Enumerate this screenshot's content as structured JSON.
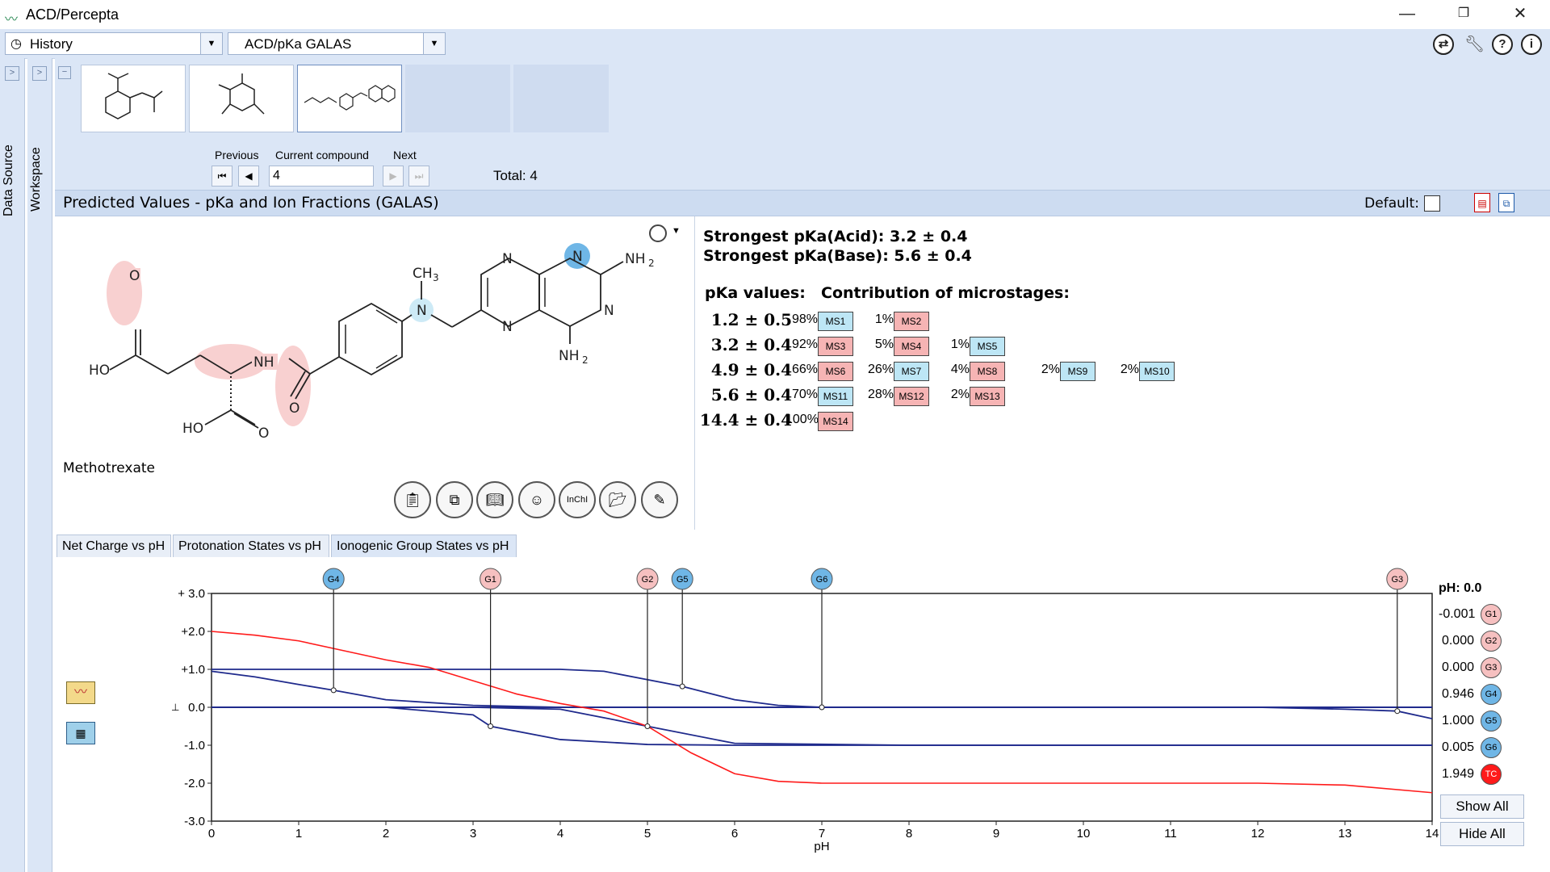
{
  "window": {
    "title": "ACD/Percepta"
  },
  "toolbar": {
    "history_label": "History",
    "module_label": "ACD/pKa GALAS"
  },
  "sidebar": {
    "data_source": "Data Source",
    "workspace": "Workspace"
  },
  "navigation": {
    "previous_label": "Previous",
    "current_label": "Current compound",
    "next_label": "Next",
    "current_value": "4",
    "total": "Total: 4"
  },
  "header": {
    "title": "Predicted Values - pKa and Ion Fractions (GALAS)",
    "default_label": "Default:"
  },
  "compound": {
    "name": "Methotrexate"
  },
  "pka": {
    "strongest_acid": "Strongest pKa(Acid): 3.2 ± 0.4",
    "strongest_base": "Strongest pKa(Base): 5.6 ± 0.4",
    "values_label": "pKa values:",
    "contrib_label": "Contribution of microstages:",
    "rows": [
      {
        "value": "1.2 ± 0.5",
        "items": [
          {
            "pct": "98%",
            "ms": "MS1",
            "color": "blue"
          },
          {
            "pct": "1%",
            "ms": "MS2",
            "color": "pink"
          }
        ]
      },
      {
        "value": "3.2 ± 0.4",
        "items": [
          {
            "pct": "92%",
            "ms": "MS3",
            "color": "pink"
          },
          {
            "pct": "5%",
            "ms": "MS4",
            "color": "pink"
          },
          {
            "pct": "1%",
            "ms": "MS5",
            "color": "blue"
          }
        ]
      },
      {
        "value": "4.9 ± 0.4",
        "items": [
          {
            "pct": "66%",
            "ms": "MS6",
            "color": "pink"
          },
          {
            "pct": "26%",
            "ms": "MS7",
            "color": "blue"
          },
          {
            "pct": "4%",
            "ms": "MS8",
            "color": "pink"
          },
          {
            "pct": "2%",
            "ms": "MS9",
            "color": "blue"
          },
          {
            "pct": "2%",
            "ms": "MS10",
            "color": "blue"
          }
        ]
      },
      {
        "value": "5.6 ± 0.4",
        "items": [
          {
            "pct": "70%",
            "ms": "MS11",
            "color": "blue"
          },
          {
            "pct": "28%",
            "ms": "MS12",
            "color": "pink"
          },
          {
            "pct": "2%",
            "ms": "MS13",
            "color": "pink"
          }
        ]
      },
      {
        "value": "14.4 ± 0.4",
        "items": [
          {
            "pct": "100%",
            "ms": "MS14",
            "color": "pink"
          }
        ]
      }
    ]
  },
  "tabs": [
    "Net Charge vs pH",
    "Protonation States vs pH",
    "Ionogenic Group States vs pH"
  ],
  "chart_data": {
    "type": "line",
    "xlabel": "pH",
    "ylabel": "",
    "xlim": [
      0,
      14
    ],
    "ylim": [
      -3,
      3
    ],
    "x_ticks": [
      "0",
      "1",
      "2",
      "3",
      "4",
      "5",
      "6",
      "7",
      "8",
      "9",
      "10",
      "11",
      "12",
      "13",
      "14"
    ],
    "y_ticks": [
      "+ 3.0",
      "+2.0",
      "+1.0",
      "0.0",
      "-1.0",
      "-2.0",
      "-3.0"
    ],
    "group_markers": [
      {
        "label": "G4",
        "ph": 1.4,
        "color": "blue"
      },
      {
        "label": "G1",
        "ph": 3.2,
        "color": "pink"
      },
      {
        "label": "G2",
        "ph": 5.0,
        "color": "pink"
      },
      {
        "label": "G5",
        "ph": 5.4,
        "color": "blue"
      },
      {
        "label": "G6",
        "ph": 7.0,
        "color": "blue"
      },
      {
        "label": "G3",
        "ph": 13.6,
        "color": "pink"
      }
    ],
    "series": [
      {
        "name": "G1",
        "color": "#1f2a8c",
        "x": [
          0,
          1,
          2,
          3,
          3.2,
          4,
          5,
          6,
          8,
          14
        ],
        "y": [
          0,
          0,
          0,
          -0.2,
          -0.5,
          -0.85,
          -0.98,
          -1.0,
          -1.0,
          -1.0
        ]
      },
      {
        "name": "G2",
        "color": "#1f2a8c",
        "x": [
          0,
          3,
          4,
          5,
          6,
          8,
          14
        ],
        "y": [
          0,
          0,
          -0.05,
          -0.5,
          -0.95,
          -1.0,
          -1.0
        ]
      },
      {
        "name": "G3",
        "color": "#1f2a8c",
        "x": [
          0,
          12,
          13,
          13.6,
          14
        ],
        "y": [
          0,
          0,
          -0.05,
          -0.1,
          -0.3
        ]
      },
      {
        "name": "G4",
        "color": "#1f2a8c",
        "x": [
          0,
          0.5,
          1,
          1.4,
          2,
          3,
          4,
          14
        ],
        "y": [
          0.95,
          0.8,
          0.6,
          0.45,
          0.2,
          0.05,
          0,
          0
        ]
      },
      {
        "name": "G5",
        "color": "#1f2a8c",
        "x": [
          0,
          2,
          3,
          4,
          4.5,
          5.4,
          6,
          6.5,
          7,
          8,
          14
        ],
        "y": [
          1,
          1,
          1,
          1,
          0.95,
          0.55,
          0.2,
          0.05,
          0,
          0,
          0
        ]
      },
      {
        "name": "G6",
        "color": "#1f2a8c",
        "x": [
          0,
          14
        ],
        "y": [
          0,
          0
        ]
      },
      {
        "name": "TC",
        "color": "#ff1a1a",
        "x": [
          0,
          0.5,
          1,
          1.5,
          2,
          2.5,
          3,
          3.5,
          4,
          4.5,
          5,
          5.5,
          6,
          6.5,
          7,
          8,
          10,
          12,
          13,
          14
        ],
        "y": [
          2.0,
          1.9,
          1.75,
          1.5,
          1.25,
          1.05,
          0.7,
          0.35,
          0.1,
          -0.1,
          -0.5,
          -1.2,
          -1.75,
          -1.95,
          -2.0,
          -2.0,
          -2.0,
          -2.0,
          -2.05,
          -2.25
        ]
      }
    ],
    "legend": {
      "title": "pH: 0.0",
      "rows": [
        {
          "value": "-0.001",
          "label": "G1",
          "color": "pink"
        },
        {
          "value": "0.000",
          "label": "G2",
          "color": "pink"
        },
        {
          "value": "0.000",
          "label": "G3",
          "color": "pink"
        },
        {
          "value": "0.946",
          "label": "G4",
          "color": "blue"
        },
        {
          "value": "1.000",
          "label": "G5",
          "color": "blue"
        },
        {
          "value": "0.005",
          "label": "G6",
          "color": "blue"
        },
        {
          "value": "1.949",
          "label": "TC",
          "color": "red"
        }
      ]
    }
  },
  "buttons": {
    "show_all": "Show All",
    "hide_all": "Hide All"
  }
}
